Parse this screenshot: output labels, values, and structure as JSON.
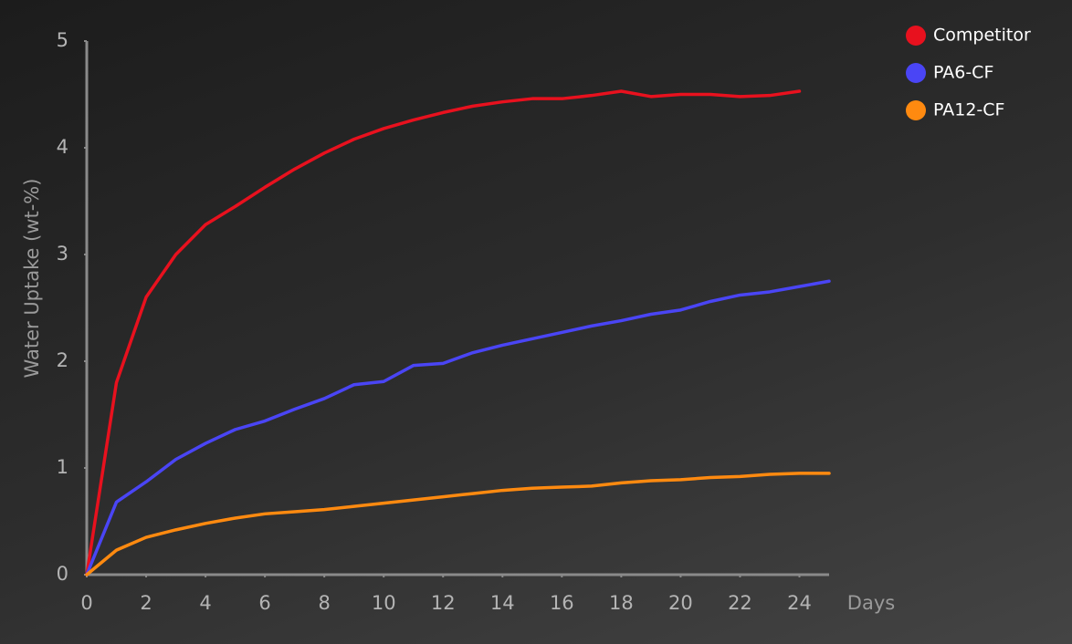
{
  "chart_data": {
    "type": "line",
    "x_label": "Days",
    "y_label": "Water Uptake (wt-%)",
    "x": [
      0,
      1,
      2,
      3,
      4,
      5,
      6,
      7,
      8,
      9,
      10,
      11,
      12,
      13,
      14,
      15,
      16,
      17,
      18,
      19,
      20,
      21,
      22,
      23,
      24,
      25
    ],
    "series": [
      {
        "name": "Competitor",
        "color": "#e8111e",
        "values": [
          0,
          1.8,
          2.6,
          3.0,
          3.28,
          3.45,
          3.63,
          3.8,
          3.95,
          4.08,
          4.18,
          4.26,
          4.33,
          4.39,
          4.43,
          4.46,
          4.46,
          4.49,
          4.53,
          4.48,
          4.5,
          4.5,
          4.48,
          4.49,
          4.53,
          null
        ]
      },
      {
        "name": "PA6-CF",
        "color": "#4a45f5",
        "values": [
          0,
          0.68,
          0.87,
          1.08,
          1.23,
          1.36,
          1.44,
          1.55,
          1.65,
          1.78,
          1.81,
          1.96,
          1.98,
          2.08,
          2.15,
          2.21,
          2.27,
          2.33,
          2.38,
          2.44,
          2.48,
          2.56,
          2.62,
          2.65,
          2.7,
          2.75
        ]
      },
      {
        "name": "PA12-CF",
        "color": "#ff8a10",
        "values": [
          0,
          0.23,
          0.35,
          0.42,
          0.48,
          0.53,
          0.57,
          0.59,
          0.61,
          0.64,
          0.67,
          0.7,
          0.73,
          0.76,
          0.79,
          0.81,
          0.82,
          0.83,
          0.86,
          0.88,
          0.89,
          0.91,
          0.92,
          0.94,
          0.95,
          0.95
        ]
      }
    ],
    "xlim": [
      0,
      25
    ],
    "xticks": [
      0,
      2,
      4,
      6,
      8,
      10,
      12,
      14,
      16,
      18,
      20,
      22,
      24
    ],
    "ylim": [
      0,
      5
    ],
    "yticks": [
      0,
      1,
      2,
      3,
      4,
      5
    ],
    "grid": false,
    "legend_position": "top-right"
  }
}
